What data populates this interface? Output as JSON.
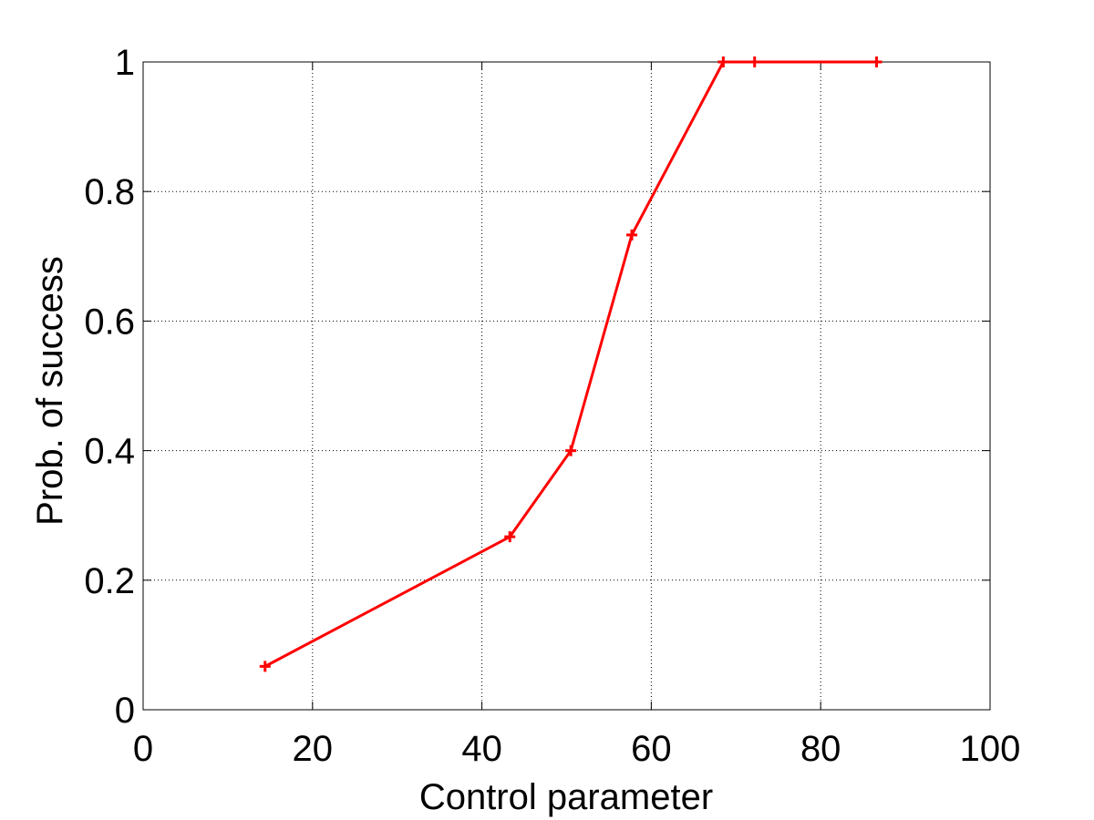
{
  "chart_data": {
    "type": "line",
    "title": "",
    "xlabel": "Control parameter",
    "ylabel": "Prob. of success",
    "xlim": [
      0,
      100
    ],
    "ylim": [
      0,
      1
    ],
    "xticks": [
      0,
      20,
      40,
      60,
      80,
      100
    ],
    "yticks": [
      0,
      0.2,
      0.4,
      0.6,
      0.8,
      1
    ],
    "xtick_labels": [
      "0",
      "20",
      "40",
      "60",
      "80",
      "100"
    ],
    "ytick_labels": [
      "0",
      "0.2",
      "0.4",
      "0.6",
      "0.8",
      "1"
    ],
    "grid": true,
    "series": [
      {
        "color": "#ff0000",
        "marker": "plus",
        "x": [
          14.4,
          43.3,
          50.5,
          57.7,
          68.5,
          72.2,
          86.6
        ],
        "y": [
          0.067,
          0.267,
          0.4,
          0.733,
          1.0,
          1.0,
          1.0
        ]
      }
    ]
  }
}
